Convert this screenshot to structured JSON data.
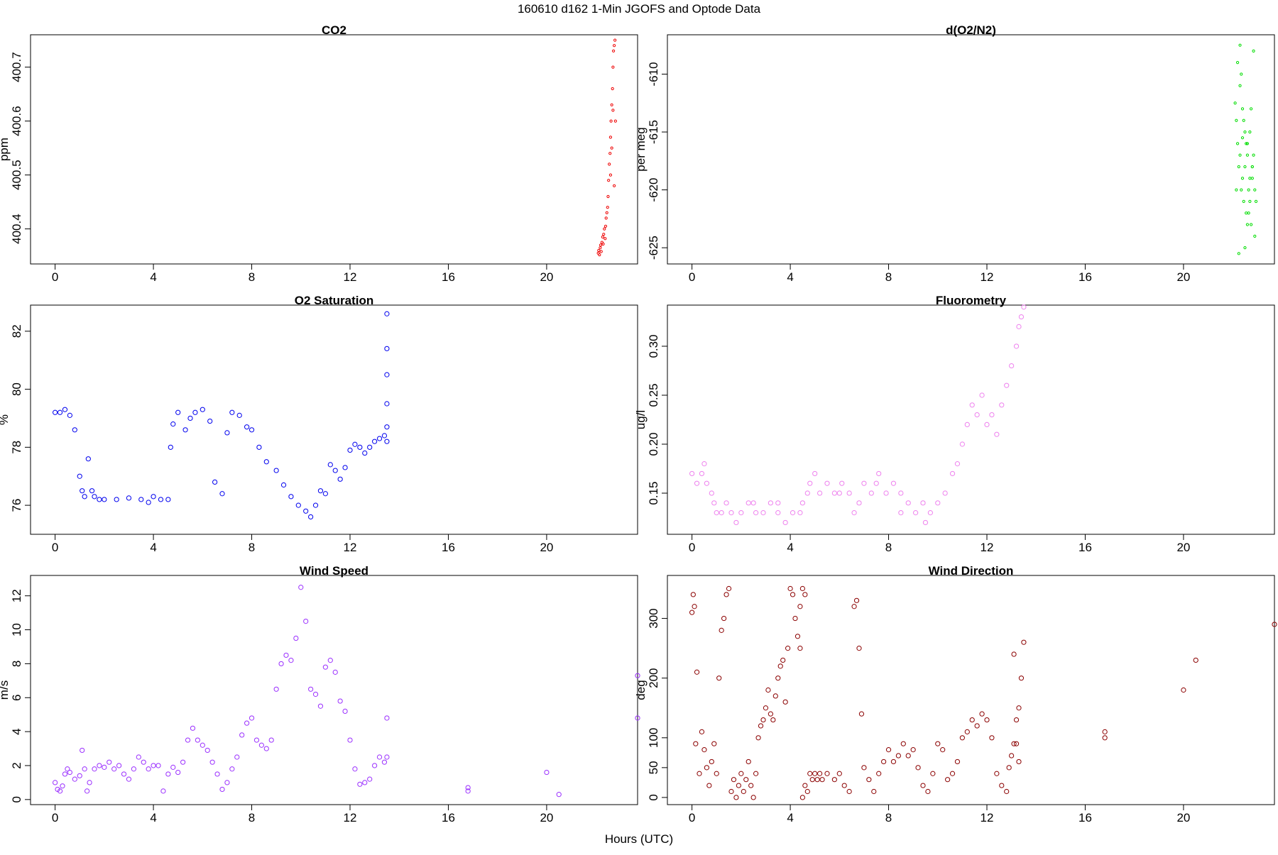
{
  "figure": {
    "title": "160610   d162   1-Min  JGOFS and Optode Data",
    "xlabel": "Hours (UTC)"
  },
  "chart_data": [
    {
      "id": "co2",
      "type": "scatter",
      "title": "CO2",
      "ylabel": "ppm",
      "color": "#ee0000",
      "marker_size": "small",
      "xlim": [
        -1,
        23.7
      ],
      "ylim": [
        400.335,
        400.76
      ],
      "xticks": [
        0,
        4,
        8,
        12,
        16,
        20
      ],
      "yticks": [
        400.4,
        400.5,
        400.6,
        400.7
      ],
      "ytick_labels": [
        "400.4",
        "400.5",
        "400.6",
        "400.7"
      ],
      "x": [
        22.1,
        22.12,
        22.15,
        22.18,
        22.2,
        22.22,
        22.25,
        22.28,
        22.3,
        22.32,
        22.35,
        22.38,
        22.4,
        22.42,
        22.45,
        22.48,
        22.5,
        22.52,
        22.55,
        22.58,
        22.6,
        22.62,
        22.65,
        22.68,
        22.7,
        22.72,
        22.75,
        22.78,
        22.8,
        22.6,
        22.65,
        22.7,
        22.75
      ],
      "y": [
        400.355,
        400.36,
        400.352,
        400.365,
        400.37,
        400.358,
        400.375,
        400.385,
        400.372,
        400.39,
        400.4,
        400.382,
        400.405,
        400.42,
        400.43,
        400.44,
        400.46,
        400.49,
        400.52,
        400.54,
        400.57,
        400.6,
        400.63,
        400.66,
        400.7,
        400.73,
        400.74,
        400.75,
        400.6,
        400.5,
        400.55,
        400.62,
        400.48
      ]
    },
    {
      "id": "o2n2",
      "type": "scatter",
      "title": "d(O2/N2)",
      "ylabel": "per meg",
      "color": "#00dd00",
      "marker_size": "small",
      "xlim": [
        -1,
        23.7
      ],
      "ylim": [
        -626.4,
        -606.6
      ],
      "xticks": [
        0,
        4,
        8,
        12,
        16,
        20
      ],
      "yticks": [
        -625,
        -620,
        -615,
        -610
      ],
      "ytick_labels": [
        "-625",
        "-620",
        "-615",
        "-610"
      ],
      "x": [
        22.1,
        22.15,
        22.2,
        22.25,
        22.3,
        22.35,
        22.4,
        22.45,
        22.5,
        22.55,
        22.6,
        22.65,
        22.7,
        22.75,
        22.8,
        22.85,
        22.9,
        22.95,
        22.2,
        22.3,
        22.4,
        22.5,
        22.6,
        22.7,
        22.8,
        22.9,
        22.25,
        22.35,
        22.45,
        22.55,
        22.65,
        22.75,
        22.85,
        22.15,
        22.5,
        22.3,
        22.6,
        22.8,
        22.4,
        22.7
      ],
      "y": [
        -612.5,
        -614,
        -616,
        -618,
        -617,
        -620,
        -619,
        -621,
        -618,
        -622,
        -616,
        -620,
        -615,
        -623,
        -619,
        -617,
        -624,
        -621,
        -609,
        -611,
        -613,
        -615,
        -617,
        -619,
        -618,
        -620,
        -625.5,
        -610,
        -614,
        -616,
        -622,
        -613,
        -608,
        -620,
        -625,
        -607.5,
        -623,
        -618,
        -615.5,
        -621
      ]
    },
    {
      "id": "o2sat",
      "type": "scatter",
      "title": "O2 Saturation",
      "ylabel": "%",
      "color": "#0000ee",
      "marker_size": "large",
      "xlim": [
        -1,
        23.7
      ],
      "ylim": [
        75.0,
        82.9
      ],
      "xticks": [
        0,
        4,
        8,
        12,
        16,
        20
      ],
      "yticks": [
        76,
        78,
        80,
        82
      ],
      "ytick_labels": [
        "76",
        "78",
        "80",
        "82"
      ],
      "x": [
        0,
        0.2,
        0.4,
        0.6,
        0.8,
        1.0,
        1.1,
        1.2,
        1.35,
        1.5,
        1.6,
        1.8,
        2.0,
        2.5,
        3.0,
        3.5,
        3.8,
        4.0,
        4.3,
        4.6,
        4.7,
        4.8,
        5.0,
        5.3,
        5.5,
        5.7,
        6.0,
        6.3,
        6.5,
        6.8,
        7.0,
        7.2,
        7.5,
        7.8,
        8.0,
        8.3,
        8.6,
        9.0,
        9.3,
        9.6,
        9.9,
        10.2,
        10.4,
        10.6,
        10.8,
        11.0,
        11.2,
        11.4,
        11.6,
        11.8,
        12.0,
        12.2,
        12.4,
        12.6,
        12.8,
        13.0,
        13.2,
        13.4,
        13.5,
        13.5,
        13.5,
        13.5,
        13.5,
        13.5
      ],
      "y": [
        79.2,
        79.2,
        79.3,
        79.1,
        78.6,
        77.0,
        76.5,
        76.3,
        77.6,
        76.5,
        76.3,
        76.2,
        76.2,
        76.2,
        76.25,
        76.2,
        76.1,
        76.3,
        76.2,
        76.2,
        78.0,
        78.8,
        79.2,
        78.6,
        79.0,
        79.2,
        79.3,
        78.9,
        76.8,
        76.4,
        78.5,
        79.2,
        79.1,
        78.7,
        78.6,
        78.0,
        77.5,
        77.2,
        76.7,
        76.3,
        76.0,
        75.8,
        75.6,
        76.0,
        76.5,
        76.4,
        77.4,
        77.2,
        76.9,
        77.3,
        77.9,
        78.1,
        78.0,
        77.8,
        78.0,
        78.2,
        78.3,
        78.4,
        78.7,
        79.5,
        80.5,
        81.4,
        82.6,
        78.2
      ]
    },
    {
      "id": "fluor",
      "type": "scatter",
      "title": "Fluorometry",
      "ylabel": "ug/l",
      "color": "#ee82ee",
      "marker_size": "large",
      "xlim": [
        -1,
        23.7
      ],
      "ylim": [
        0.108,
        0.342
      ],
      "xticks": [
        0,
        4,
        8,
        12,
        16,
        20
      ],
      "yticks": [
        0.15,
        0.2,
        0.25,
        0.3
      ],
      "ytick_labels": [
        "0.15",
        "0.20",
        "0.25",
        "0.30"
      ],
      "x": [
        0,
        0.2,
        0.4,
        0.5,
        0.6,
        0.8,
        0.9,
        1.0,
        1.2,
        1.4,
        1.6,
        1.8,
        2.0,
        2.3,
        2.6,
        2.9,
        3.2,
        3.5,
        3.8,
        4.1,
        4.4,
        4.7,
        4.8,
        5.0,
        5.2,
        5.5,
        5.8,
        6.1,
        6.4,
        6.6,
        6.8,
        7.0,
        7.3,
        7.6,
        7.9,
        8.2,
        8.5,
        8.8,
        9.1,
        9.4,
        9.7,
        10.0,
        10.3,
        10.6,
        10.8,
        11.0,
        11.2,
        11.4,
        11.6,
        11.8,
        12.0,
        12.2,
        12.4,
        12.6,
        12.8,
        13.0,
        13.2,
        13.3,
        13.4,
        13.5,
        2.5,
        3.5,
        4.5,
        6.0,
        7.5,
        8.5,
        9.5
      ],
      "y": [
        0.17,
        0.16,
        0.17,
        0.18,
        0.16,
        0.15,
        0.14,
        0.13,
        0.13,
        0.14,
        0.13,
        0.12,
        0.13,
        0.14,
        0.13,
        0.13,
        0.14,
        0.13,
        0.12,
        0.13,
        0.13,
        0.15,
        0.16,
        0.17,
        0.15,
        0.16,
        0.15,
        0.16,
        0.15,
        0.13,
        0.14,
        0.16,
        0.15,
        0.17,
        0.15,
        0.16,
        0.15,
        0.14,
        0.13,
        0.14,
        0.13,
        0.14,
        0.15,
        0.17,
        0.18,
        0.2,
        0.22,
        0.24,
        0.23,
        0.25,
        0.22,
        0.23,
        0.21,
        0.24,
        0.26,
        0.28,
        0.3,
        0.32,
        0.33,
        0.34,
        0.14,
        0.14,
        0.14,
        0.15,
        0.16,
        0.13,
        0.12
      ]
    },
    {
      "id": "wspd",
      "type": "scatter",
      "title": "Wind Speed",
      "ylabel": "m/s",
      "color": "#9b30ff",
      "marker_size": "large",
      "xlim": [
        -1,
        23.7
      ],
      "ylim": [
        -0.3,
        13.2
      ],
      "xticks": [
        0,
        4,
        8,
        12,
        16,
        20
      ],
      "yticks": [
        0,
        2,
        4,
        6,
        8,
        10,
        12
      ],
      "ytick_labels": [
        "0",
        "2",
        "4",
        "6",
        "8",
        "10",
        "12"
      ],
      "x": [
        0,
        0.1,
        0.2,
        0.3,
        0.4,
        0.5,
        0.6,
        0.8,
        1.0,
        1.1,
        1.2,
        1.3,
        1.4,
        1.6,
        1.8,
        2.0,
        2.2,
        2.4,
        2.6,
        2.8,
        3.0,
        3.2,
        3.4,
        3.6,
        3.8,
        4.0,
        4.2,
        4.4,
        4.6,
        4.8,
        5.0,
        5.2,
        5.4,
        5.6,
        5.8,
        6.0,
        6.2,
        6.4,
        6.6,
        6.8,
        7.0,
        7.2,
        7.4,
        7.6,
        7.8,
        8.0,
        8.2,
        8.4,
        8.6,
        8.8,
        9.0,
        9.2,
        9.4,
        9.6,
        9.8,
        10.0,
        10.2,
        10.4,
        10.6,
        10.8,
        11.0,
        11.2,
        11.4,
        11.6,
        11.8,
        12.0,
        12.2,
        12.4,
        12.6,
        12.8,
        13.0,
        13.2,
        13.4,
        13.5,
        13.5,
        16.8,
        16.8,
        20.0,
        20.5,
        23.7,
        23.7
      ],
      "y": [
        1.0,
        0.6,
        0.5,
        0.8,
        1.5,
        1.8,
        1.6,
        1.2,
        1.4,
        2.9,
        1.8,
        0.5,
        1.0,
        1.8,
        2.0,
        1.9,
        2.2,
        1.8,
        2.0,
        1.5,
        1.2,
        1.8,
        2.5,
        2.2,
        1.8,
        2.0,
        2.0,
        0.5,
        1.5,
        1.9,
        1.6,
        2.2,
        3.5,
        4.2,
        3.5,
        3.2,
        2.9,
        2.2,
        1.5,
        0.6,
        1.0,
        1.8,
        2.5,
        3.8,
        4.5,
        4.8,
        3.5,
        3.2,
        3.0,
        3.5,
        6.5,
        8.0,
        8.5,
        8.2,
        9.5,
        12.5,
        10.5,
        6.5,
        6.2,
        5.5,
        7.8,
        8.2,
        7.5,
        5.8,
        5.2,
        3.5,
        1.8,
        0.9,
        1.0,
        1.2,
        2.0,
        2.5,
        2.2,
        4.8,
        2.5,
        0.7,
        0.5,
        1.6,
        0.3,
        7.3,
        4.8
      ]
    },
    {
      "id": "wdir",
      "type": "scatter",
      "title": "Wind Direction",
      "ylabel": "deg",
      "color": "#8b0000",
      "marker_size": "large",
      "xlim": [
        -1,
        23.7
      ],
      "ylim": [
        -12,
        372
      ],
      "xticks": [
        0,
        4,
        8,
        12,
        16,
        20
      ],
      "yticks": [
        0,
        50,
        100,
        200,
        300
      ],
      "ytick_labels": [
        "0",
        "50",
        "100",
        "200",
        "300"
      ],
      "x": [
        0,
        0.05,
        0.1,
        0.15,
        0.2,
        0.3,
        0.4,
        0.5,
        0.6,
        0.7,
        0.8,
        0.9,
        1.0,
        1.1,
        1.2,
        1.3,
        1.4,
        1.5,
        1.6,
        1.7,
        1.8,
        1.9,
        2.0,
        2.1,
        2.2,
        2.3,
        2.4,
        2.5,
        2.6,
        2.7,
        2.8,
        2.9,
        3.0,
        3.1,
        3.2,
        3.3,
        3.4,
        3.5,
        3.6,
        3.7,
        3.8,
        3.9,
        4.0,
        4.1,
        4.2,
        4.3,
        4.4,
        4.5,
        4.6,
        4.7,
        4.8,
        4.9,
        5.0,
        5.1,
        5.2,
        4.5,
        4.6,
        4.4,
        5.3,
        5.5,
        5.8,
        6.0,
        6.2,
        6.4,
        6.6,
        6.7,
        6.8,
        6.9,
        7.0,
        7.2,
        7.4,
        7.6,
        7.8,
        8.0,
        8.2,
        8.4,
        8.6,
        8.8,
        9.0,
        9.2,
        9.4,
        9.6,
        9.8,
        10.0,
        10.2,
        10.4,
        10.6,
        10.8,
        11.0,
        11.2,
        11.4,
        11.6,
        11.8,
        12.0,
        12.2,
        12.4,
        12.6,
        12.8,
        12.9,
        13.0,
        13.1,
        13.2,
        13.3,
        13.4,
        13.5,
        13.1,
        13.2,
        13.3,
        16.8,
        16.8,
        20.0,
        20.5,
        23.7
      ],
      "y": [
        310,
        340,
        320,
        90,
        210,
        40,
        110,
        80,
        50,
        20,
        60,
        90,
        40,
        200,
        280,
        300,
        340,
        350,
        10,
        30,
        0,
        20,
        40,
        10,
        30,
        60,
        20,
        0,
        40,
        100,
        120,
        130,
        150,
        180,
        140,
        130,
        170,
        200,
        220,
        230,
        160,
        250,
        350,
        340,
        300,
        270,
        250,
        0,
        20,
        10,
        40,
        30,
        40,
        30,
        40,
        350,
        340,
        320,
        30,
        40,
        30,
        40,
        20,
        10,
        320,
        330,
        250,
        140,
        50,
        30,
        10,
        40,
        60,
        80,
        60,
        70,
        90,
        70,
        80,
        50,
        20,
        10,
        40,
        90,
        80,
        30,
        40,
        60,
        100,
        110,
        130,
        120,
        140,
        130,
        100,
        40,
        20,
        10,
        50,
        70,
        90,
        130,
        150,
        200,
        260,
        240,
        90,
        60,
        110,
        100,
        180,
        230,
        290
      ]
    }
  ]
}
